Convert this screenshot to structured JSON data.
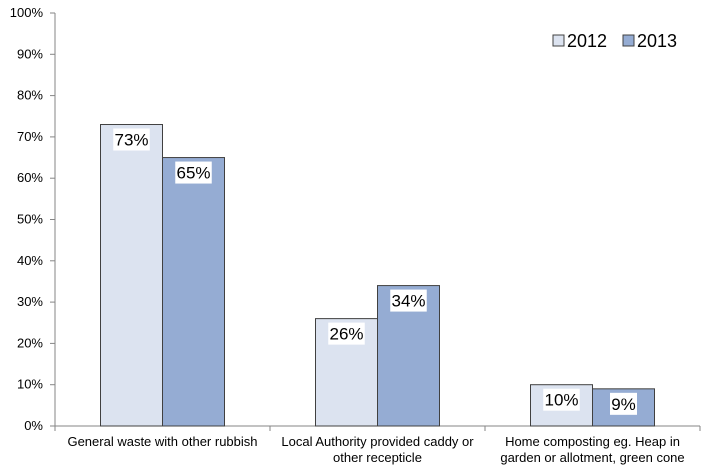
{
  "chart_data": {
    "type": "bar",
    "categories": [
      [
        "General waste with other rubbish"
      ],
      [
        "Local Authority provided caddy or",
        "other recepticle"
      ],
      [
        "Home composting eg. Heap in",
        "garden or allotment, green cone"
      ]
    ],
    "series": [
      {
        "name": "2012",
        "values": [
          73,
          26,
          10
        ],
        "labels": [
          "73%",
          "26%",
          "10%"
        ],
        "color": "#dce3f0"
      },
      {
        "name": "2013",
        "values": [
          65,
          34,
          9
        ],
        "labels": [
          "65%",
          "34%",
          "9%"
        ],
        "color": "#95acd3"
      }
    ],
    "ylim": [
      0,
      100
    ],
    "yticks": [
      "0%",
      "10%",
      "20%",
      "30%",
      "40%",
      "50%",
      "60%",
      "70%",
      "80%",
      "90%",
      "100%"
    ],
    "legend_position": "top-right",
    "grid": false
  }
}
